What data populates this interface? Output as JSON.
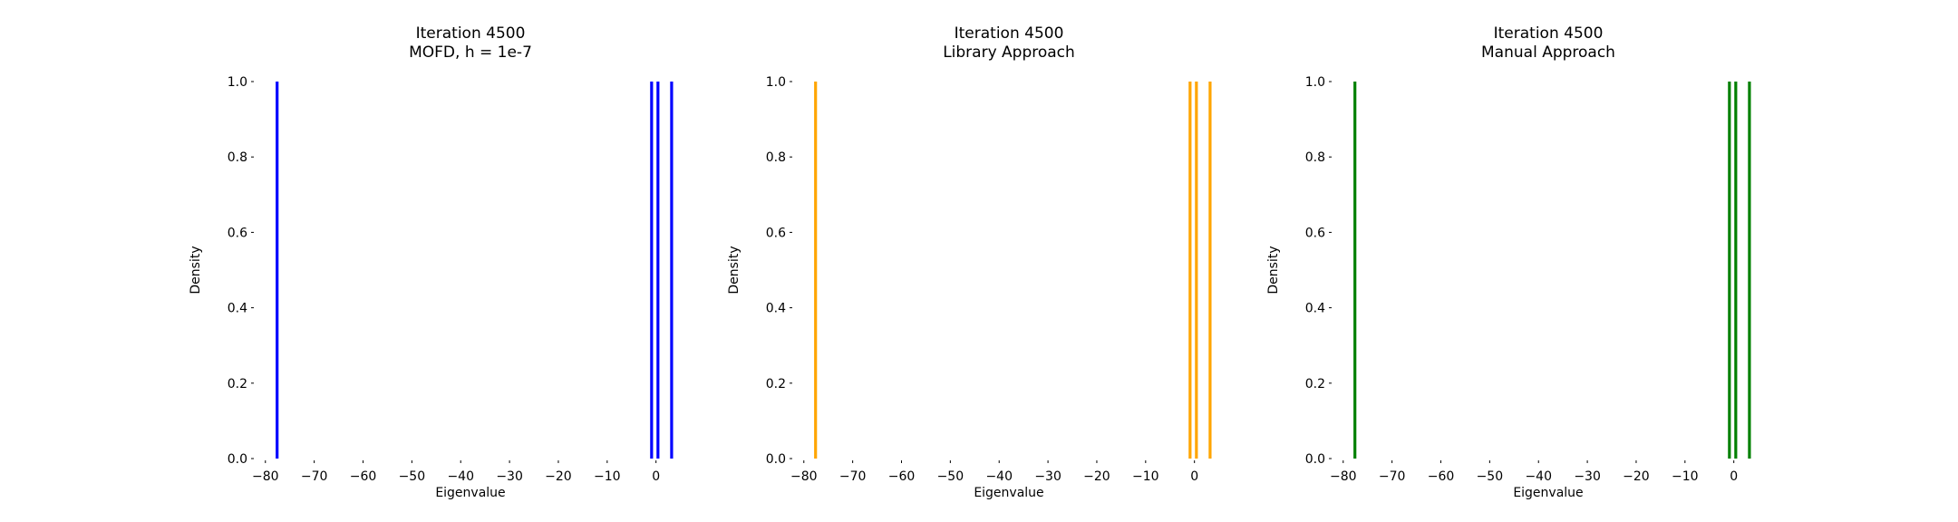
{
  "chart_data": [
    {
      "type": "bar",
      "title": "Iteration 4500\nMOFD, h = 1e-7",
      "xlabel": "Eigenvalue",
      "ylabel": "Density",
      "xlim": [
        -82,
        6
      ],
      "ylim": [
        0,
        1.0
      ],
      "xticks": [
        -80,
        -70,
        -60,
        -50,
        -40,
        -30,
        -20,
        -10,
        0
      ],
      "yticks": [
        0.0,
        0.2,
        0.4,
        0.6,
        0.8,
        1.0
      ],
      "grid": false,
      "color": "#0000ff",
      "bars": [
        {
          "x": -77.6,
          "density": 1.0
        },
        {
          "x": -0.9,
          "density": 1.0
        },
        {
          "x": 0.4,
          "density": 1.0
        },
        {
          "x": 3.2,
          "density": 1.0
        }
      ]
    },
    {
      "type": "bar",
      "title": "Iteration 4500\nLibrary Approach",
      "xlabel": "Eigenvalue",
      "ylabel": "Density",
      "xlim": [
        -82,
        6
      ],
      "ylim": [
        0,
        1.0
      ],
      "xticks": [
        -80,
        -70,
        -60,
        -50,
        -40,
        -30,
        -20,
        -10,
        0
      ],
      "yticks": [
        0.0,
        0.2,
        0.4,
        0.6,
        0.8,
        1.0
      ],
      "grid": false,
      "color": "#ffa500",
      "bars": [
        {
          "x": -77.6,
          "density": 1.0
        },
        {
          "x": -0.9,
          "density": 1.0
        },
        {
          "x": 0.4,
          "density": 1.0
        },
        {
          "x": 3.2,
          "density": 1.0
        }
      ]
    },
    {
      "type": "bar",
      "title": "Iteration 4500\nManual Approach",
      "xlabel": "Eigenvalue",
      "ylabel": "Density",
      "xlim": [
        -82,
        6
      ],
      "ylim": [
        0,
        1.0
      ],
      "xticks": [
        -80,
        -70,
        -60,
        -50,
        -40,
        -30,
        -20,
        -10,
        0
      ],
      "yticks": [
        0.0,
        0.2,
        0.4,
        0.6,
        0.8,
        1.0
      ],
      "grid": false,
      "color": "#008000",
      "bars": [
        {
          "x": -77.6,
          "density": 1.0
        },
        {
          "x": -0.9,
          "density": 1.0
        },
        {
          "x": 0.4,
          "density": 1.0
        },
        {
          "x": 3.2,
          "density": 1.0
        }
      ]
    }
  ]
}
